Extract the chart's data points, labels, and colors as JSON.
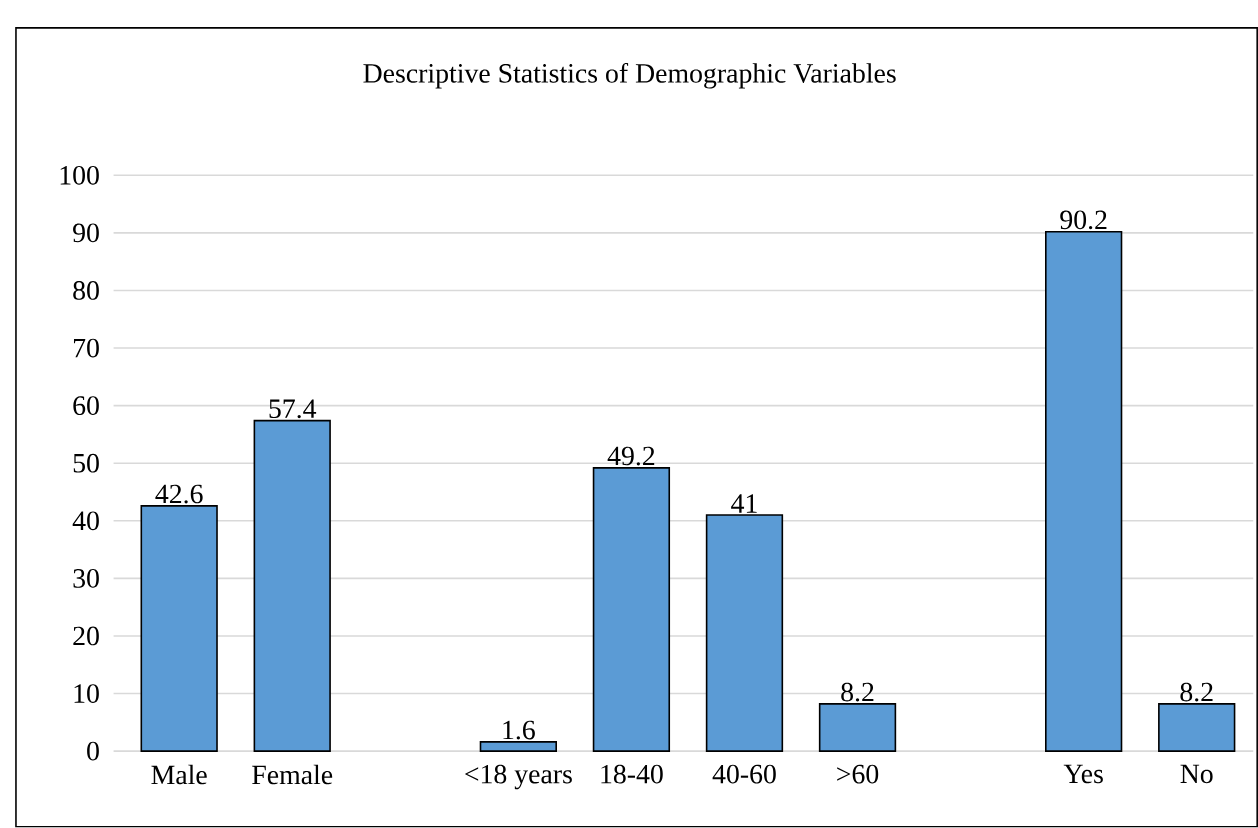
{
  "chart_data": {
    "type": "bar",
    "title": "Descriptive Statistics of Demographic Variables",
    "categories": [
      "Male",
      "Female",
      null,
      "<18 years",
      "18-40",
      "40-60",
      ">60",
      null,
      "Yes",
      "No"
    ],
    "values": [
      42.6,
      57.4,
      null,
      1.6,
      49.2,
      41,
      8.2,
      null,
      90.2,
      8.2
    ],
    "color": "#5b9bd5",
    "ylim": [
      0,
      100
    ],
    "yticks": [
      0,
      10,
      20,
      30,
      40,
      50,
      60,
      70,
      80,
      90,
      100
    ],
    "grid": "y",
    "data_labels": true
  }
}
